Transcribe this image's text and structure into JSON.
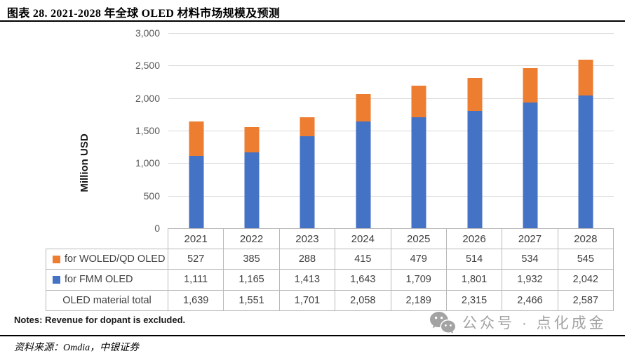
{
  "page": {
    "title": "图表 28. 2021-2028 年全球 OLED 材料市场规模及预测"
  },
  "chart_data": {
    "type": "bar",
    "stacked": true,
    "title": "",
    "xlabel": "",
    "ylabel": "Million USD",
    "ylim": [
      0,
      3000
    ],
    "ytick_step": 500,
    "ytick_labels": [
      "3,000",
      "2,500",
      "2,000",
      "1,500",
      "1,000",
      "500",
      "0"
    ],
    "grid": true,
    "legend_position": "data-table-below-chart",
    "categories": [
      "2021",
      "2022",
      "2023",
      "2024",
      "2025",
      "2026",
      "2027",
      "2028"
    ],
    "series": [
      {
        "name": "for FMM OLED",
        "color": "#4472C4",
        "values": [
          1111,
          1165,
          1413,
          1643,
          1709,
          1801,
          1932,
          2042
        ]
      },
      {
        "name": "for WOLED/QD OLED",
        "color": "#ED7D31",
        "values": [
          527,
          385,
          288,
          415,
          479,
          514,
          534,
          545
        ]
      }
    ],
    "totals": {
      "name": "OLED material total",
      "values": [
        1639,
        1551,
        1701,
        2058,
        2189,
        2315,
        2466,
        2587
      ]
    }
  },
  "table": {
    "corner_label": "",
    "years": [
      "2021",
      "2022",
      "2023",
      "2024",
      "2025",
      "2026",
      "2027",
      "2028"
    ],
    "rows": [
      {
        "label": "for WOLED/QD OLED",
        "swatch_color": "#ED7D31",
        "values": [
          "527",
          "385",
          "288",
          "415",
          "479",
          "514",
          "534",
          "545"
        ]
      },
      {
        "label": "for FMM OLED",
        "swatch_color": "#4472C4",
        "values": [
          "1,111",
          "1,165",
          "1,413",
          "1,643",
          "1,709",
          "1,801",
          "1,932",
          "2,042"
        ]
      },
      {
        "label": "OLED material total",
        "swatch_color": null,
        "values": [
          "1,639",
          "1,551",
          "1,701",
          "2,058",
          "2,189",
          "2,315",
          "2,466",
          "2,587"
        ]
      }
    ]
  },
  "notes": "Notes: Revenue for dopant is excluded.",
  "source": "资料来源：Omdia，中银证券",
  "watermark": {
    "icon": "wechat-icon",
    "text": "公众号 · 点化成金"
  },
  "colors": {
    "bar_blue": "#4472C4",
    "bar_orange": "#ED7D31",
    "gridline": "#d9d9d9",
    "table_border": "#b9b9b9",
    "watermark_gray": "#a3a3a3"
  }
}
